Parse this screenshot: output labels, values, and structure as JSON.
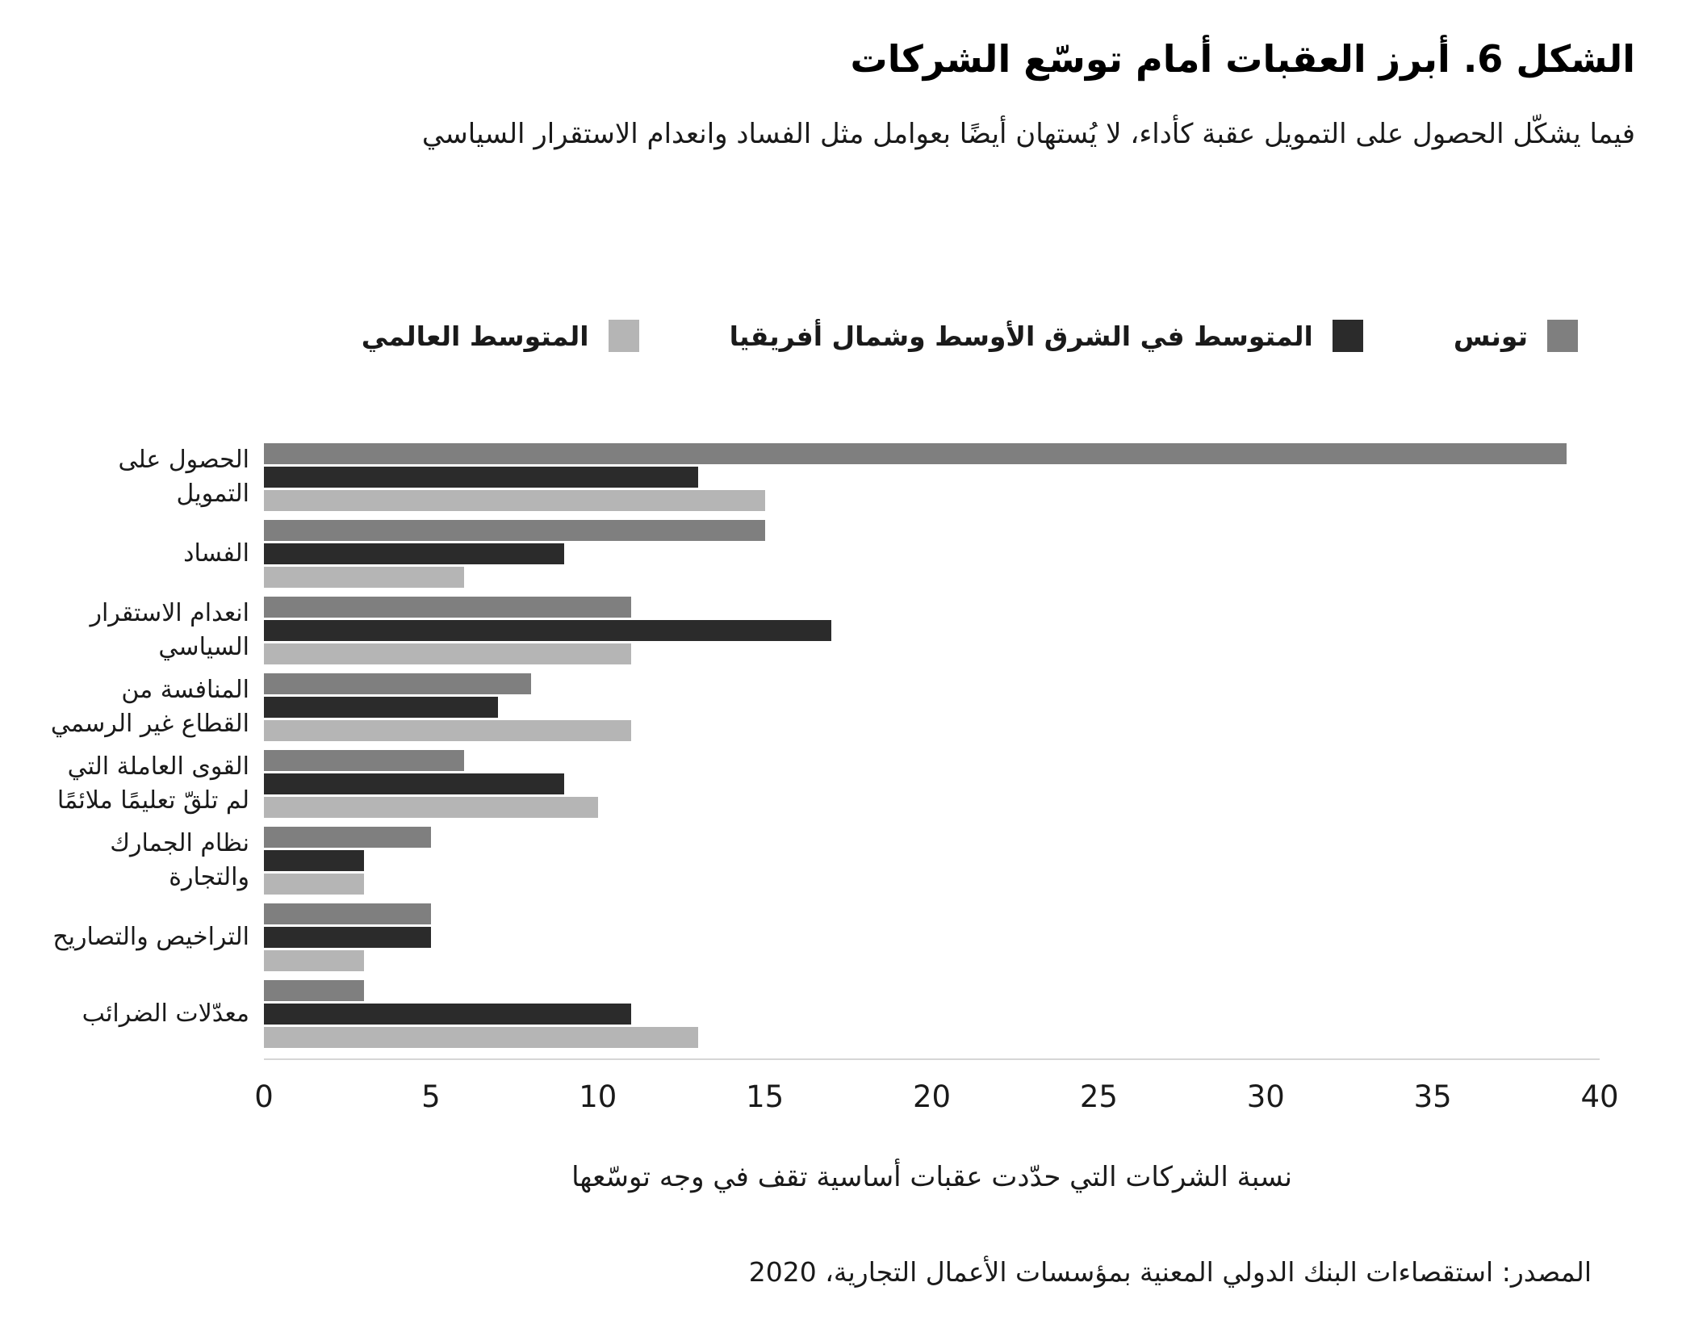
{
  "figure": {
    "title": "الشكل 6. أبرز العقبات أمام توسّع الشركات",
    "subtitle": "فيما يشكّل الحصول على التمويل عقبة كأداء، لا يُستهان أيضًا بعوامل مثل الفساد وانعدام الاستقرار السياسي",
    "source": "المصدر: استقصاءات البنك الدولي المعنية بمؤسسات الأعمال التجارية، 2020"
  },
  "colors": {
    "tunisia": "#7f7f7f",
    "mena": "#2b2b2b",
    "world": "#b5b5b5",
    "axis_line": "#d6d6d6"
  },
  "legend": [
    {
      "label": "تونس",
      "color": "#7f7f7f"
    },
    {
      "label": "المتوسط في الشرق الأوسط وشمال أفريقيا",
      "color": "#2b2b2b"
    },
    {
      "label": "المتوسط العالمي",
      "color": "#b5b5b5"
    }
  ],
  "chart_data": {
    "type": "bar",
    "orientation": "horizontal",
    "title": "الشكل 6. أبرز العقبات أمام توسّع الشركات",
    "subtitle": "فيما يشكّل الحصول على التمويل عقبة كأداء، لا يُستهان أيضًا بعوامل مثل الفساد وانعدام الاستقرار السياسي",
    "categories": [
      "الحصول على التمويل",
      "الفساد",
      "انعدام الاستقرار السياسي",
      "المنافسة من القطاع غير الرسمي",
      "القوى العاملة التي لم تلقّ تعليمًا ملائمًا",
      "نظام الجمارك والتجارة",
      "التراخيص والتصاريح",
      "معدّلات الضرائب"
    ],
    "series": [
      {
        "name": "تونس",
        "color": "#7f7f7f",
        "values": [
          39,
          15,
          11,
          8,
          6,
          5,
          5,
          3
        ]
      },
      {
        "name": "المتوسط في الشرق الأوسط وشمال أفريقيا",
        "color": "#2b2b2b",
        "values": [
          13,
          9,
          17,
          7,
          9,
          3,
          5,
          11
        ]
      },
      {
        "name": "المتوسط العالمي",
        "color": "#b5b5b5",
        "values": [
          15,
          6,
          11,
          11,
          10,
          3,
          3,
          13
        ]
      }
    ],
    "xlabel": "نسبة الشركات التي حدّدت عقبات أساسية تقف في وجه توسّعها",
    "ylabel": "",
    "xlim": [
      0,
      40
    ],
    "xticks": [
      0,
      5,
      10,
      15,
      20,
      25,
      30,
      35,
      40
    ],
    "grid": false,
    "legend_position": "top"
  }
}
